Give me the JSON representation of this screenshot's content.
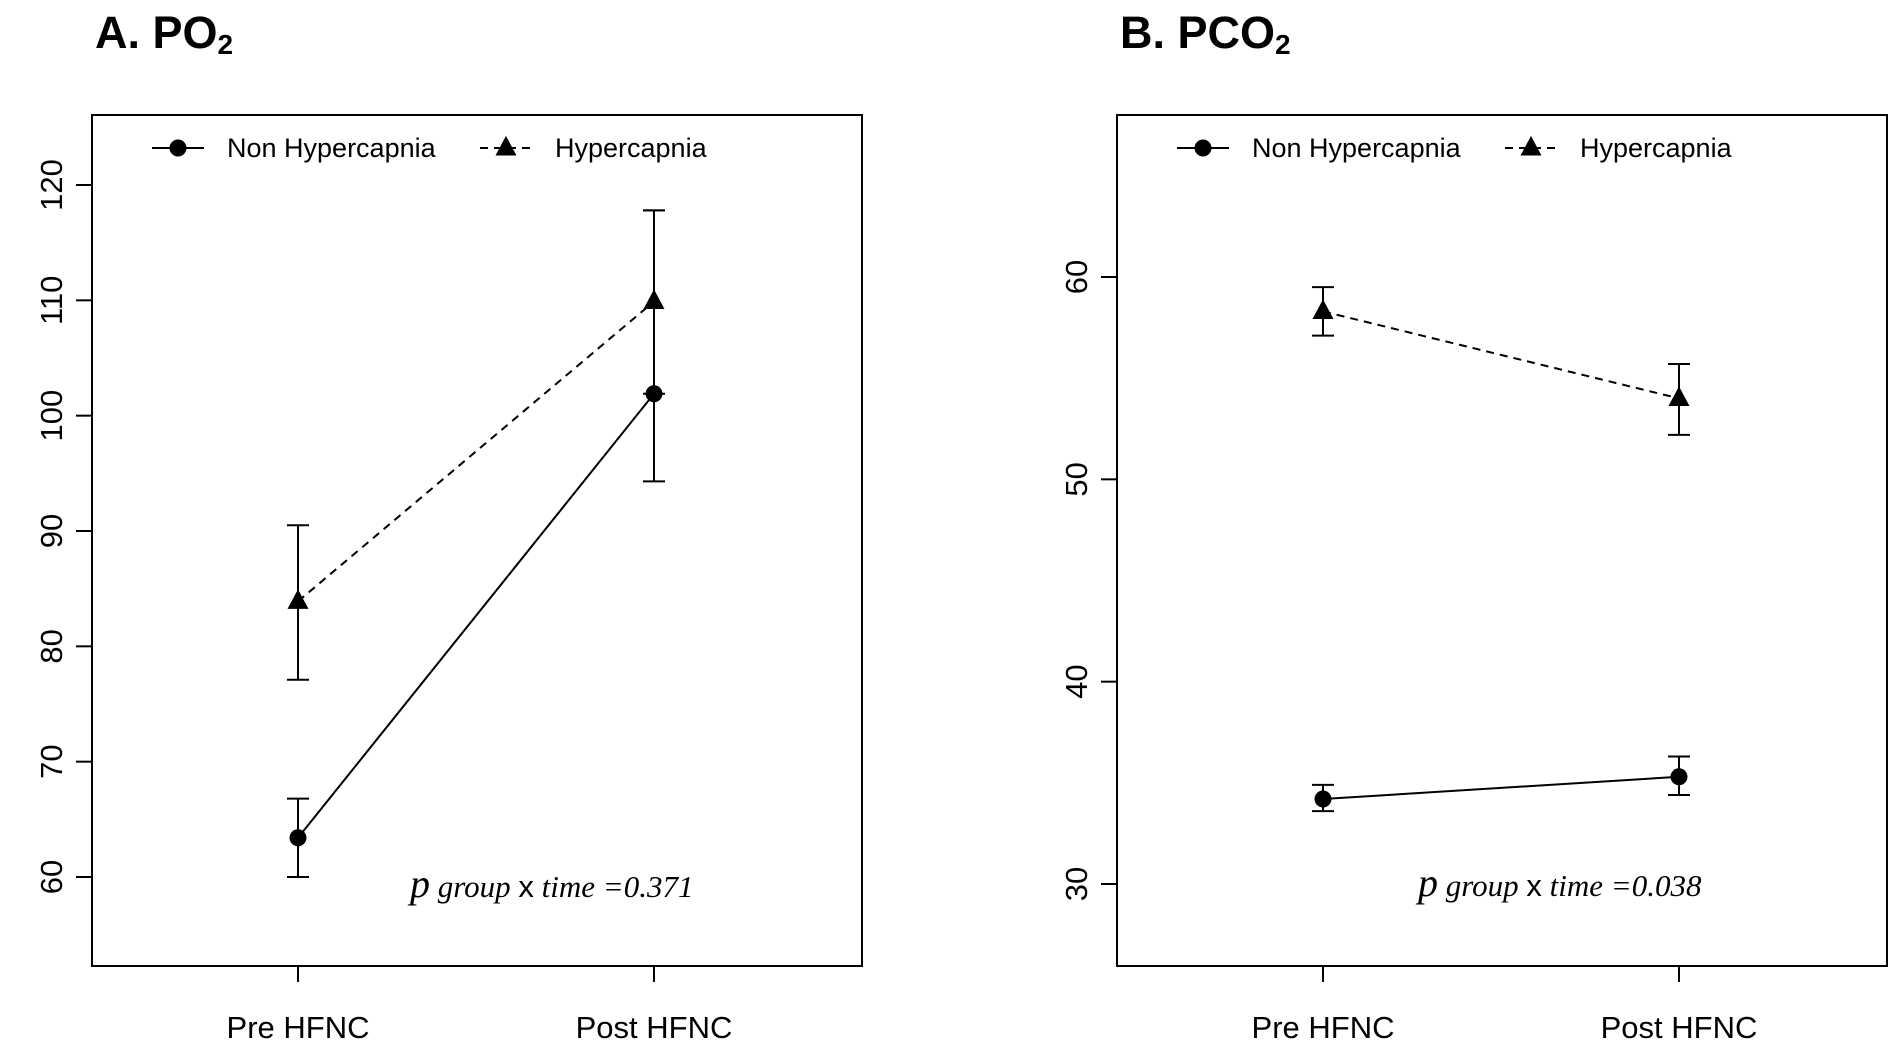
{
  "chart_data": [
    {
      "type": "line",
      "title": "A. PO",
      "title_subscript": "2",
      "categories": [
        "Pre HFNC",
        "Post HFNC"
      ],
      "ylim": [
        50,
        125
      ],
      "yticks": [
        60,
        70,
        80,
        90,
        100,
        110,
        120
      ],
      "legend": {
        "placement": "top-left"
      },
      "series": [
        {
          "name": "Non Hypercapnia",
          "marker": "circle",
          "linestyle": "solid",
          "values": [
            63.4,
            101.9
          ],
          "err_low": [
            60.0,
            94.3
          ],
          "err_high": [
            66.8,
            117.8
          ]
        },
        {
          "name": "Hypercapnia",
          "marker": "triangle",
          "linestyle": "dashed",
          "values": [
            83.9,
            109.9
          ],
          "err_low": [
            77.1,
            101.9
          ],
          "err_high": [
            90.5,
            117.8
          ]
        }
      ],
      "annotation": {
        "p": "p",
        "group": "group",
        "x": "x",
        "rest": "time =0.371"
      }
    },
    {
      "type": "line",
      "title": "B. PCO",
      "title_subscript": "2",
      "categories": [
        "Pre HFNC",
        "Post HFNC"
      ],
      "ylim": [
        26,
        68
      ],
      "yticks": [
        30,
        40,
        50,
        60
      ],
      "legend": {
        "placement": "top-left"
      },
      "series": [
        {
          "name": "Non Hypercapnia",
          "marker": "circle",
          "linestyle": "solid",
          "values": [
            34.2,
            35.3
          ],
          "err_low": [
            33.6,
            34.4
          ],
          "err_high": [
            34.9,
            36.3
          ]
        },
        {
          "name": "Hypercapnia",
          "marker": "triangle",
          "linestyle": "dashed",
          "values": [
            58.3,
            54.0
          ],
          "err_low": [
            57.1,
            52.2
          ],
          "err_high": [
            59.5,
            55.7
          ]
        }
      ],
      "annotation": {
        "p": "p",
        "group": "group",
        "x": "x",
        "rest": "time =0.038"
      }
    }
  ]
}
